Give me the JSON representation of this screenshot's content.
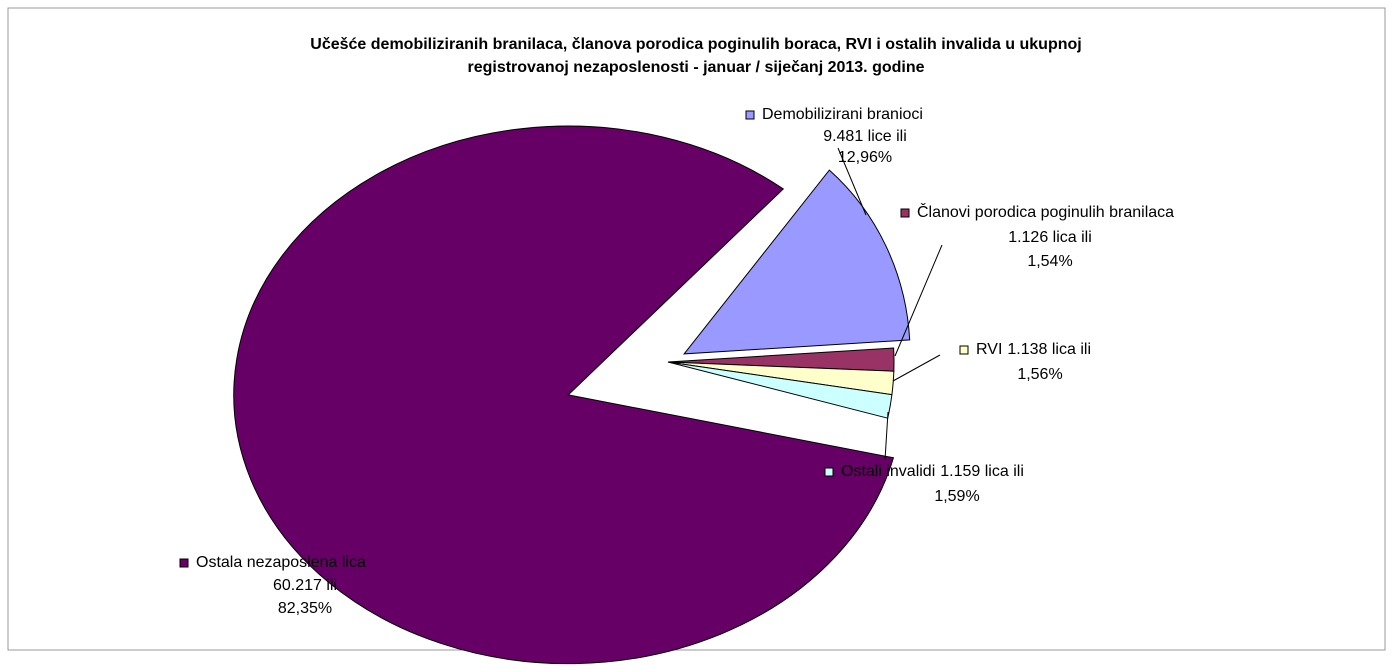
{
  "chart_data": {
    "type": "pie",
    "title": [
      "Učešće demobiliziranih branilaca, članova porodica poginulih boraca, RVI i ostalih invalida u ukupnoj",
      "registrovanoj nezaposlenosti  - januar / siječanj  2013. godine"
    ],
    "categories": [
      "Demobilizirani branioci",
      "Članovi porodica poginulih branilaca",
      "RVI",
      "Ostali invalidi",
      "Ostala nezaposlena lica"
    ],
    "count_labels": [
      "9.481 lice ili",
      "1.126 lica ili",
      "1.138 lica ili",
      "1.159 lica  ili",
      "60.217 ili"
    ],
    "values": [
      12.96,
      1.54,
      1.56,
      1.59,
      82.35
    ],
    "value_labels": [
      "12,96%",
      "1,54%",
      "1,56%",
      "1,59%",
      "82,35%"
    ],
    "colors": [
      "#9999ff",
      "#993366",
      "#ffffcc",
      "#ccffff",
      "#660066"
    ],
    "start_angle": 40
  }
}
